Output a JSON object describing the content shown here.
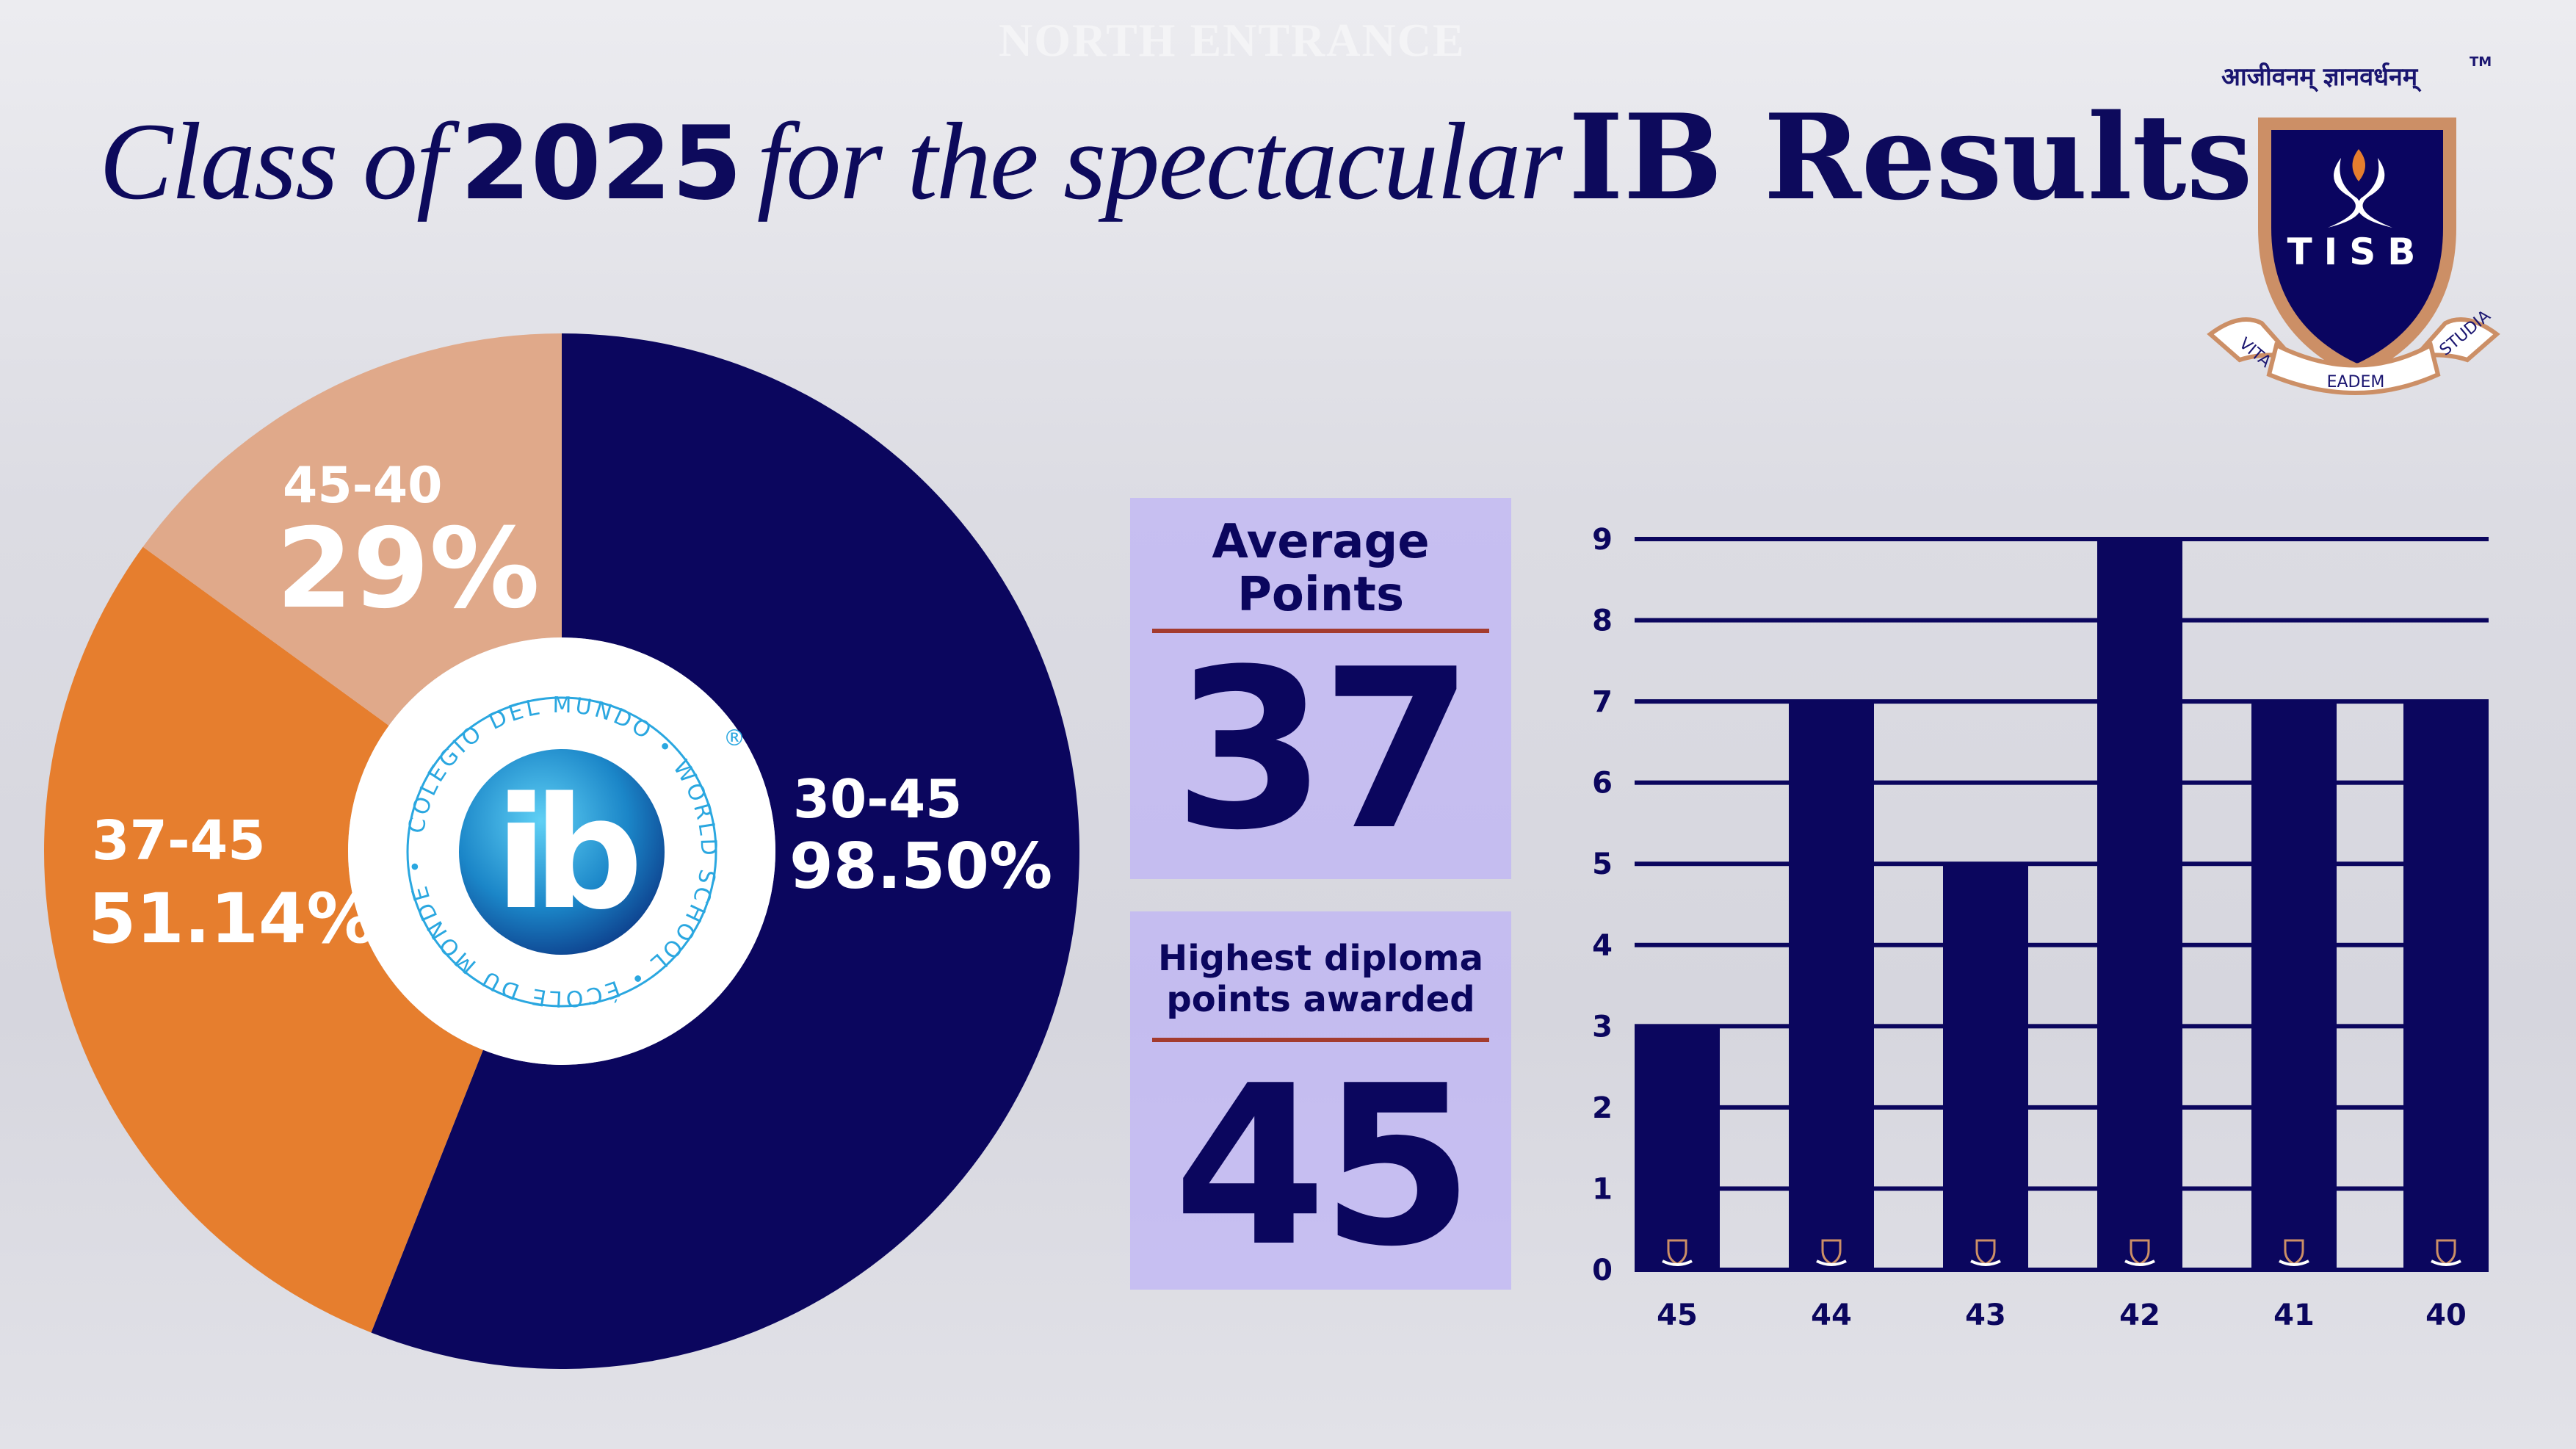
{
  "background_sign": "NORTH ENTRANCE",
  "title": {
    "part1": "Class of",
    "year": "2025",
    "part2": "for the spectacular",
    "part3": "IB Results"
  },
  "logo": {
    "motto_hindi": "आजीवनम् ज्ञानवर्धनम्",
    "tm": "TM",
    "name": "TISB",
    "ribbon": [
      "VITA",
      "EADEM",
      "STUDIA"
    ]
  },
  "ib_logo": {
    "letters": "ib",
    "ring_text": "COLEGIO DEL MUNDO • WORLD SCHOOL • ÉCOLE DU MONDE •",
    "registered": "®"
  },
  "colors": {
    "navy": "#0b065e",
    "orange": "#e67e2e",
    "peach": "#e0a98a",
    "box": "#b9acfa",
    "rule": "#a43b2e",
    "accent_blue": "#2aa7e0"
  },
  "stats": {
    "average": {
      "label_line1": "Average",
      "label_line2": "Points",
      "value": "37"
    },
    "highest": {
      "label_line1": "Highest diploma",
      "label_line2": "points awarded",
      "value": "45"
    }
  },
  "chart_data": [
    {
      "type": "pie",
      "donut": true,
      "slices": [
        {
          "range": "30-45",
          "label": "98.50%",
          "color": "#0b065e",
          "share": 0.56
        },
        {
          "range": "37-45",
          "label": "51.14%",
          "color": "#e67e2e",
          "share": 0.29
        },
        {
          "range": "45-40",
          "label": "29%",
          "color": "#e0a98a",
          "share": 0.15
        }
      ]
    },
    {
      "type": "bar",
      "categories": [
        "45",
        "44",
        "43",
        "42",
        "41",
        "40"
      ],
      "values": [
        3,
        7,
        5,
        9,
        7,
        7
      ],
      "ylim": [
        0,
        9
      ],
      "yticks": [
        "0",
        "1",
        "2",
        "3",
        "4",
        "5",
        "6",
        "7",
        "8",
        "9"
      ],
      "grid": true,
      "bar_color": "#0b065e"
    }
  ]
}
